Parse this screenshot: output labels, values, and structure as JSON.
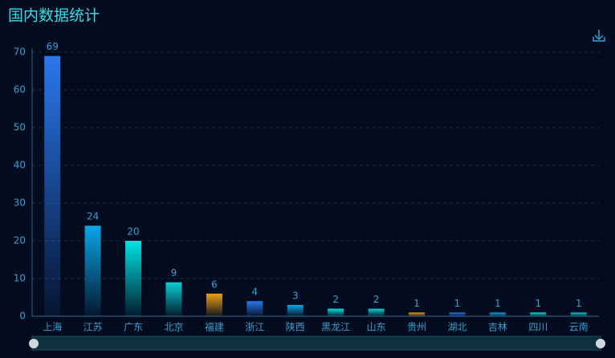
{
  "chart_data": {
    "type": "bar",
    "title": "国内数据统计",
    "categories": [
      "上海",
      "江苏",
      "广东",
      "北京",
      "福建",
      "浙江",
      "陕西",
      "黑龙江",
      "山东",
      "贵州",
      "湖北",
      "吉林",
      "四川",
      "云南"
    ],
    "values": [
      69,
      24,
      20,
      9,
      6,
      4,
      3,
      2,
      2,
      1,
      1,
      1,
      1,
      1
    ],
    "colors": [
      "#2a78ee",
      "#0aa6e8",
      "#00e4e4",
      "#0acfd6",
      "#f0a010"
    ],
    "ylim": [
      0,
      70
    ],
    "yticks": [
      0,
      10,
      20,
      30,
      40,
      50,
      60,
      70
    ],
    "grid": true
  }
}
